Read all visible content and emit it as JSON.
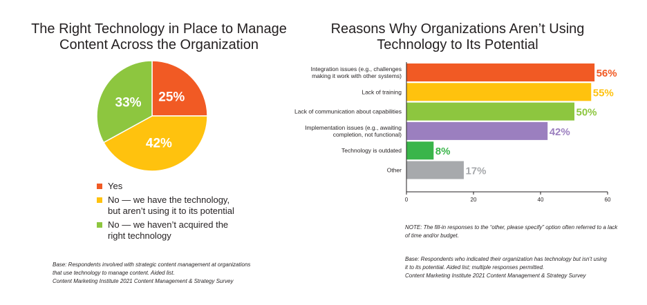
{
  "charts": {
    "left": {
      "title_line1": "The Right Technology in Place to Manage",
      "title_line2": "Content Across the Organization"
    },
    "right": {
      "title_line1": "Reasons Why Organizations Aren’t Using",
      "title_line2": "Technology to Its Potential"
    }
  },
  "legend": [
    {
      "label_line1": "Yes",
      "label_line2": "",
      "color": "#f15a24"
    },
    {
      "label_line1": "No — we have the technology,",
      "label_line2": "but aren’t using it to its potential",
      "color": "#ffc20e"
    },
    {
      "label_line1": "No — we haven’t acquired the",
      "label_line2": "right technology",
      "color": "#8dc63f"
    }
  ],
  "notes": {
    "left_base_line1": "Base: Respondents involved with strategic content management at organizations",
    "left_base_line2": "that use technology to manage content. Aided list.",
    "left_source": "Content Marketing Institute 2021 Content Management & Strategy Survey",
    "right_note_line1": "NOTE: The fill-in responses to the “other, please specify” option often referred to a lack",
    "right_note_line2": "of time and/or budget.",
    "right_base_line1": "Base: Respondents who indicated their organization has technology but isn’t using",
    "right_base_line2": "it to its potential. Aided list; multiple responses permitted.",
    "right_source": "Content Marketing Institute 2021 Content Management & Strategy Survey"
  },
  "chart_data": [
    {
      "type": "pie",
      "title": "The Right Technology in Place to Manage Content Across the Organization",
      "categories": [
        "Yes",
        "No — we have the technology, but aren’t using it to its potential",
        "No — we haven’t acquired the right technology"
      ],
      "values": [
        25,
        42,
        33
      ],
      "labels": [
        "25%",
        "42%",
        "33%"
      ],
      "colors": [
        "#f15a24",
        "#ffc20e",
        "#8dc63f"
      ],
      "start": "12 o'clock, clockwise"
    },
    {
      "type": "bar",
      "orientation": "horizontal",
      "title": "Reasons Why Organizations Aren’t Using Technology to Its Potential",
      "categories": [
        [
          "Integration issues (e.g., challenges",
          "making it work with other systems)"
        ],
        [
          "Lack of training"
        ],
        [
          "Lack of communication about capabilities"
        ],
        [
          "Implementation issues (e.g., awaiting",
          "completion, not functional)"
        ],
        [
          "Technology is outdated"
        ],
        [
          "Other"
        ]
      ],
      "values": [
        56,
        55,
        50,
        42,
        8,
        17
      ],
      "labels": [
        "56%",
        "55%",
        "50%",
        "42%",
        "8%",
        "17%"
      ],
      "colors": [
        "#f15a24",
        "#ffc20e",
        "#8dc63f",
        "#9b7fbf",
        "#3ab54a",
        "#a7a9ac"
      ],
      "xlim": [
        0,
        60
      ],
      "xticks": [
        0,
        20,
        40,
        60
      ]
    }
  ]
}
